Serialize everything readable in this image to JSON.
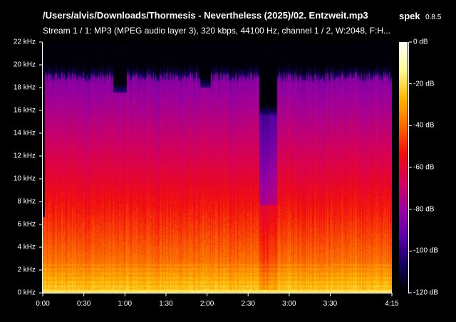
{
  "header": {
    "file_title": "/Users/alvis/Downloads/Thormesis - Nevertheless (2025)/02. Entzweit.mp3",
    "app_name": "spek",
    "app_version": "0.8.5",
    "stream_info": "Stream 1 / 1: MP3 (MPEG audio layer 3), 320 kbps, 44100 Hz, channel 1 / 2, W:2048, F:H..."
  },
  "frequency_axis": {
    "labels": [
      "22 kHz",
      "20 kHz",
      "18 kHz",
      "16 kHz",
      "14 kHz",
      "12 kHz",
      "10 kHz",
      "8 kHz",
      "6 kHz",
      "4 kHz",
      "2 kHz",
      "0 kHz"
    ],
    "max_khz": 22
  },
  "time_axis": {
    "labels": [
      "0:00",
      "0:30",
      "1:00",
      "1:30",
      "2:00",
      "2:30",
      "3:00",
      "3:30",
      "4:15"
    ],
    "seconds": [
      0,
      30,
      60,
      90,
      120,
      150,
      180,
      210,
      255
    ],
    "duration_seconds": 255
  },
  "level_axis": {
    "labels": [
      "0 dB",
      "-20 dB",
      "-40 dB",
      "-60 dB",
      "-80 dB",
      "-100 dB",
      "-120 dB"
    ],
    "min_db": -120,
    "max_db": 0
  },
  "palette": {
    "background": "#000000",
    "text": "#ffffff",
    "colorbar": [
      "#000000",
      "#13005a",
      "#5a00a8",
      "#9b009f",
      "#d4005b",
      "#f20d0d",
      "#fb6a00",
      "#ffb800",
      "#ffff9a",
      "#ffffff"
    ]
  }
}
